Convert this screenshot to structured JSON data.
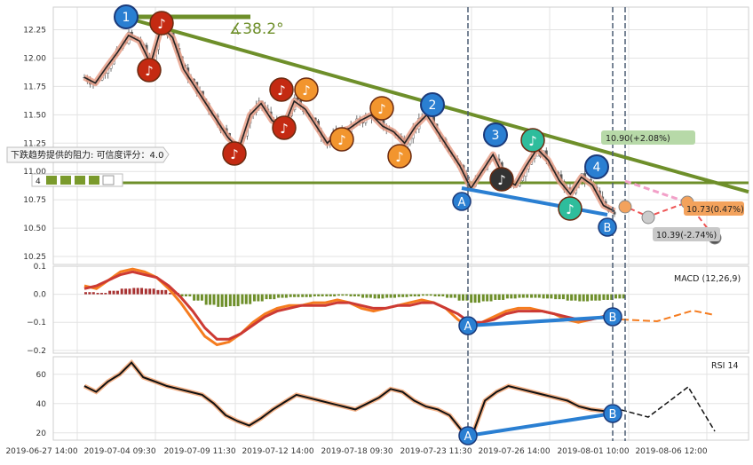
{
  "chart_data": [
    {
      "type": "candlestick",
      "panel": "price",
      "y_ticks": [
        "12.25",
        "12.00",
        "11.75",
        "11.50",
        "11.25",
        "11.00",
        "10.75",
        "10.50",
        "10.25"
      ],
      "y_tick_values": [
        12.25,
        12.0,
        11.75,
        11.5,
        11.25,
        11.0,
        10.75,
        10.5,
        10.25
      ],
      "ylim": [
        10.18,
        12.45
      ],
      "price_path": [
        11.83,
        11.78,
        11.92,
        12.05,
        12.2,
        12.15,
        11.95,
        12.28,
        12.18,
        11.9,
        11.75,
        11.6,
        11.45,
        11.3,
        11.2,
        11.5,
        11.6,
        11.45,
        11.38,
        11.62,
        11.55,
        11.4,
        11.25,
        11.35,
        11.38,
        11.45,
        11.5,
        11.4,
        11.35,
        11.25,
        11.4,
        11.5,
        11.35,
        11.2,
        11.05,
        10.85,
        11.0,
        11.15,
        10.95,
        10.88,
        11.05,
        11.2,
        11.1,
        10.92,
        10.8,
        10.95,
        10.88,
        10.7,
        10.65
      ],
      "support_level": 10.9,
      "angle_label": "∡38.2°",
      "tooltip_text": "下跌趋势提供的阻力: 可信度评分：4.0",
      "rating_value": "4",
      "wave_labels": [
        "1",
        "2",
        "3",
        "4",
        "A",
        "B"
      ],
      "projections": [
        {
          "label": "10.90(+2.08%)",
          "color": "#b7d9a8"
        },
        {
          "label": "10.73(0.47%)",
          "color": "#f3a25c"
        },
        {
          "label": "10.39(-2.74%)",
          "color": "#c8c8c8"
        }
      ]
    },
    {
      "type": "macd",
      "panel": "macd",
      "label": "MACD (12,26,9)",
      "y_ticks": [
        "0.1",
        "0.0",
        "−0.1",
        "−0.2"
      ],
      "y_tick_values": [
        0.1,
        0.0,
        -0.1,
        -0.2
      ],
      "ylim": [
        -0.21,
        0.1
      ],
      "macd_line": [
        0.03,
        0.02,
        0.05,
        0.08,
        0.09,
        0.08,
        0.06,
        0.02,
        -0.03,
        -0.09,
        -0.15,
        -0.18,
        -0.17,
        -0.14,
        -0.1,
        -0.07,
        -0.05,
        -0.04,
        -0.04,
        -0.03,
        -0.03,
        -0.02,
        -0.03,
        -0.05,
        -0.06,
        -0.05,
        -0.04,
        -0.03,
        -0.02,
        -0.03,
        -0.05,
        -0.09,
        -0.12,
        -0.1,
        -0.08,
        -0.06,
        -0.05,
        -0.05,
        -0.06,
        -0.07,
        -0.09,
        -0.1,
        -0.09,
        -0.08,
        -0.06
      ],
      "signal_line": [
        0.02,
        0.03,
        0.05,
        0.07,
        0.08,
        0.07,
        0.06,
        0.03,
        -0.01,
        -0.06,
        -0.12,
        -0.16,
        -0.16,
        -0.14,
        -0.11,
        -0.08,
        -0.06,
        -0.05,
        -0.04,
        -0.04,
        -0.04,
        -0.03,
        -0.03,
        -0.04,
        -0.05,
        -0.05,
        -0.04,
        -0.04,
        -0.03,
        -0.03,
        -0.05,
        -0.07,
        -0.1,
        -0.1,
        -0.09,
        -0.07,
        -0.06,
        -0.06,
        -0.06,
        -0.07,
        -0.08,
        -0.09,
        -0.09,
        -0.08,
        -0.07
      ]
    },
    {
      "type": "rsi",
      "panel": "rsi",
      "label": "RSI 14",
      "y_ticks": [
        "60",
        "40",
        "20"
      ],
      "y_tick_values": [
        60,
        40,
        20
      ],
      "ylim": [
        15,
        72
      ],
      "rsi_line": [
        52,
        48,
        55,
        60,
        68,
        58,
        55,
        52,
        50,
        48,
        46,
        40,
        32,
        28,
        25,
        30,
        36,
        41,
        46,
        44,
        42,
        40,
        38,
        36,
        40,
        44,
        50,
        48,
        42,
        38,
        36,
        32,
        22,
        20,
        42,
        48,
        52,
        50,
        48,
        46,
        44,
        42,
        38,
        36,
        35,
        34
      ]
    }
  ],
  "x_ticks": [
    "2019-06-27 14:00",
    "2019-07-04 09:30",
    "2019-07-09 11:30",
    "2019-07-12 14:00",
    "2019-07-18 09:30",
    "2019-07-23 11:30",
    "2019-07-26 14:00",
    "2019-08-01 10:00",
    "2019-08-06 12:00"
  ],
  "colors": {
    "trend_green": "#6e8f2a",
    "wave_blue": "#2a7fd2",
    "note_red": "#c42a12",
    "note_orange": "#f2952e",
    "note_teal": "#2ebd9c",
    "macd_orange": "#f57c1f",
    "signal_red": "#cc3a34",
    "hist_green": "#6e8f2a",
    "hist_red": "#a83232"
  }
}
